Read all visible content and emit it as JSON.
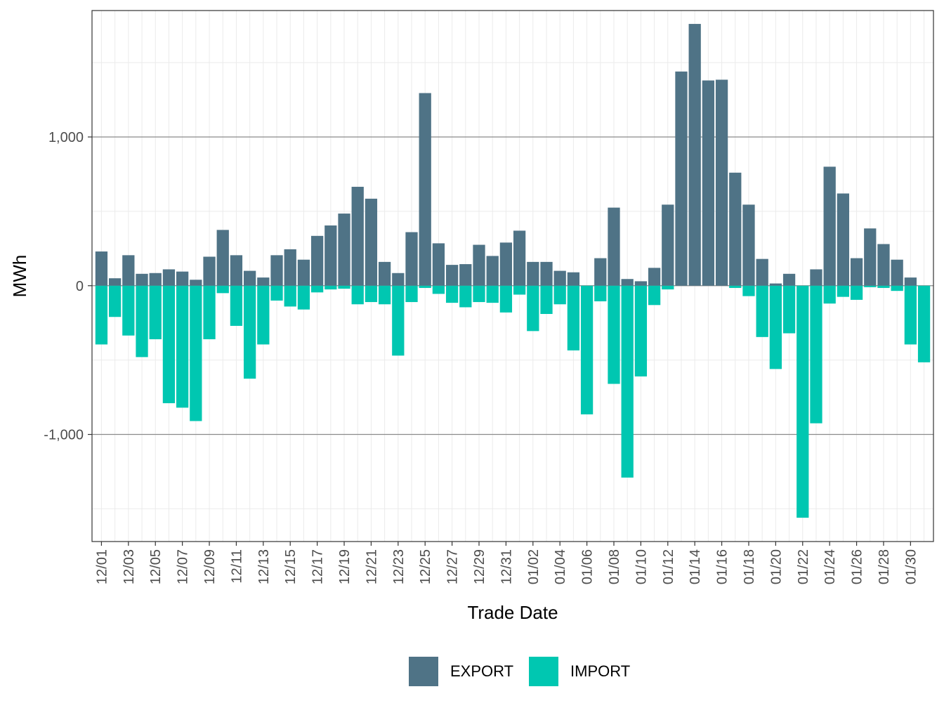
{
  "chart_data": {
    "type": "bar",
    "xlabel": "Trade Date",
    "ylabel": "MWh",
    "ylim": [
      -1720,
      1850
    ],
    "y_ticks": [
      -1000,
      0,
      1000
    ],
    "y_tick_labels": [
      "-1,000",
      "0",
      "1,000"
    ],
    "grid": true,
    "legend_position": "bottom",
    "colors": {
      "EXPORT": "#4f7386",
      "IMPORT": "#00c7b1"
    },
    "categories": [
      "12/01",
      "12/02",
      "12/03",
      "12/04",
      "12/05",
      "12/06",
      "12/07",
      "12/08",
      "12/09",
      "12/10",
      "12/11",
      "12/12",
      "12/13",
      "12/14",
      "12/15",
      "12/16",
      "12/17",
      "12/18",
      "12/19",
      "12/20",
      "12/21",
      "12/22",
      "12/23",
      "12/24",
      "12/25",
      "12/26",
      "12/27",
      "12/28",
      "12/29",
      "12/30",
      "12/31",
      "01/01",
      "01/02",
      "01/03",
      "01/04",
      "01/05",
      "01/06",
      "01/07",
      "01/08",
      "01/09",
      "01/10",
      "01/11",
      "01/12",
      "01/13",
      "01/14",
      "01/15",
      "01/16",
      "01/17",
      "01/18",
      "01/19",
      "01/20",
      "01/21",
      "01/22",
      "01/23",
      "01/24",
      "01/25",
      "01/26",
      "01/27",
      "01/28",
      "01/29",
      "01/30",
      "01/31"
    ],
    "x_tick_labels": [
      "12/01",
      "12/03",
      "12/05",
      "12/07",
      "12/09",
      "12/11",
      "12/13",
      "12/15",
      "12/17",
      "12/19",
      "12/21",
      "12/23",
      "12/25",
      "12/27",
      "12/29",
      "12/31",
      "01/02",
      "01/04",
      "01/06",
      "01/08",
      "01/10",
      "01/12",
      "01/14",
      "01/16",
      "01/18",
      "01/20",
      "01/22",
      "01/24",
      "01/26",
      "01/28",
      "01/30"
    ],
    "series": [
      {
        "name": "EXPORT",
        "values": [
          230,
          50,
          205,
          80,
          85,
          110,
          95,
          40,
          195,
          375,
          205,
          100,
          55,
          205,
          245,
          175,
          335,
          405,
          485,
          665,
          585,
          160,
          85,
          360,
          1295,
          285,
          140,
          145,
          275,
          200,
          290,
          370,
          160,
          160,
          100,
          90,
          0,
          185,
          525,
          45,
          30,
          120,
          545,
          1440,
          1760,
          1380,
          1385,
          760,
          545,
          180,
          15,
          80,
          0,
          110,
          800,
          620,
          185,
          385,
          280,
          175,
          55,
          0
        ]
      },
      {
        "name": "IMPORT",
        "values": [
          -395,
          -210,
          -335,
          -480,
          -360,
          -790,
          -820,
          -910,
          -360,
          -50,
          -270,
          -625,
          -395,
          -100,
          -140,
          -160,
          -45,
          -25,
          -20,
          -125,
          -110,
          -125,
          -470,
          -110,
          -15,
          -55,
          -115,
          -145,
          -110,
          -115,
          -180,
          -60,
          -305,
          -190,
          -125,
          -435,
          -865,
          -105,
          -660,
          -1290,
          -610,
          -130,
          -25,
          0,
          0,
          0,
          0,
          -15,
          -70,
          -345,
          -560,
          -320,
          -1560,
          -925,
          -120,
          -75,
          -95,
          -10,
          -15,
          -35,
          -395,
          -515
        ]
      }
    ]
  }
}
